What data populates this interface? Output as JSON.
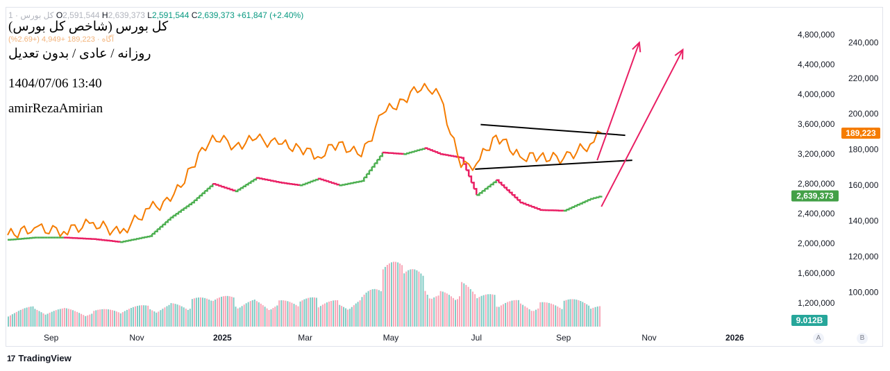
{
  "header": {
    "symbol": "کل بورس",
    "ohlc_prefix": "1 · کل بورس",
    "open_label": "O",
    "open_value": "2,591,544",
    "high_label": "H",
    "high_value": "2,639,373",
    "low_label": "L",
    "low_value": "2,591,544",
    "close_label": "C",
    "close_value": "2,639,373",
    "change": "+61,847 (+2.40%)",
    "overlay_line": "آگاه · 189,223 +4,949 (+2.69%)"
  },
  "notes": {
    "title": "کل بورس (شاخص کل بورس)",
    "subtitle": "روزانه / عادی / بدون تعدیل",
    "datetime": "1404/07/06 13:40",
    "author": "amirRezaAmirian"
  },
  "axes": {
    "left_ticks": [
      "4,800,000",
      "4,400,000",
      "4,000,000",
      "3,600,000",
      "3,200,000",
      "2,800,000",
      "2,400,000",
      "2,000,000",
      "1,600,000",
      "1,200,000"
    ],
    "right_ticks": [
      "240,000",
      "220,000",
      "200,000",
      "180,000",
      "160,000",
      "140,000",
      "120,000",
      "100,000"
    ],
    "x_ticks": [
      "Sep",
      "Nov",
      "2025",
      "Mar",
      "May",
      "Jul",
      "Sep",
      "Nov",
      "2026"
    ],
    "badges": {
      "overlay_last": "189,223",
      "index_last": "2,639,373",
      "volume_last": "9.012B"
    },
    "scale_buttons": [
      "A",
      "B"
    ]
  },
  "colors": {
    "up": "#4caf50",
    "down": "#e91e63",
    "overlay": "#f57c00",
    "arrow": "#e91e63",
    "trend": "#000000",
    "volume_up": "#80cbc4",
    "volume_down": "#f8a6b7"
  },
  "branding": {
    "logo": "17",
    "name": "TradingView"
  },
  "chart_data": {
    "type": "line",
    "x": [
      "2024-08-01",
      "2024-08-20",
      "2024-09-10",
      "2024-10-01",
      "2024-10-20",
      "2024-11-10",
      "2024-11-25",
      "2024-12-10",
      "2024-12-25",
      "2025-01-10",
      "2025-01-25",
      "2025-02-10",
      "2025-02-25",
      "2025-03-10",
      "2025-03-25",
      "2025-04-10",
      "2025-04-25",
      "2025-05-10",
      "2025-05-25",
      "2025-06-05",
      "2025-06-20",
      "2025-07-01",
      "2025-07-15",
      "2025-08-01",
      "2025-08-15",
      "2025-09-01",
      "2025-09-20",
      "2025-09-28"
    ],
    "series": [
      {
        "name": "کل بورس",
        "axis": "left",
        "values": [
          2050000,
          2080000,
          2080000,
          2060000,
          2020000,
          2100000,
          2350000,
          2550000,
          2800000,
          2700000,
          2880000,
          2820000,
          2780000,
          2870000,
          2780000,
          2840000,
          3220000,
          3200000,
          3280000,
          3200000,
          3150000,
          2650000,
          2850000,
          2550000,
          2450000,
          2440000,
          2600000,
          2639373
        ]
      },
      {
        "axis": "right",
        "values": [
          132000,
          136000,
          134000,
          139000,
          133000,
          147000,
          151000,
          170000,
          188000,
          182000,
          186000,
          183000,
          181000,
          176000,
          184000,
          176000,
          200000,
          208000,
          217000,
          210000,
          170000,
          172000,
          188000,
          176000,
          176000,
          175000,
          183000,
          189223
        ]
      }
    ],
    "volume": [
      0.9,
      1.1,
      1.0,
      0.9,
      1.0,
      1.2,
      1.3,
      1.5,
      1.7,
      1.6,
      1.5,
      1.4,
      1.5,
      1.6,
      1.4,
      1.6,
      3.2,
      3.8,
      2.6,
      2.0,
      2.4,
      1.8,
      1.7,
      1.4,
      1.3,
      1.5,
      1.4,
      1.2
    ],
    "ylim_left": [
      1100000,
      4950000
    ],
    "ylim_right": [
      90000,
      246000
    ],
    "annotations": {
      "triangle_upper": [
        [
          "2025-07-04",
          194000
        ],
        [
          "2025-10-15",
          188000
        ]
      ],
      "triangle_lower": [
        [
          "2025-06-30",
          169000
        ],
        [
          "2025-10-20",
          174000
        ]
      ],
      "arrow_1": [
        [
          "2025-09-25",
          174000
        ],
        [
          "2025-10-25",
          240000
        ]
      ],
      "arrow_2": [
        [
          "2025-09-28",
          148000
        ],
        [
          "2025-11-25",
          236000
        ]
      ]
    },
    "grid": false,
    "legend": "top-left"
  }
}
